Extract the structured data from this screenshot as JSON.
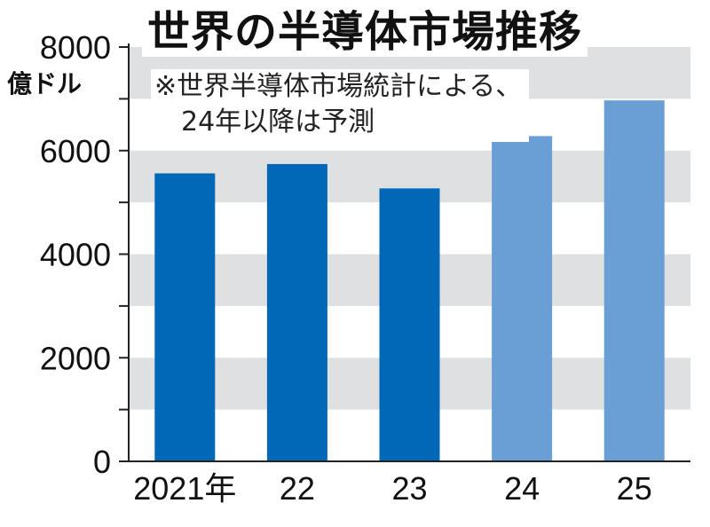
{
  "title": "世界の半導体市場推移",
  "unit_label": "億ドル",
  "note": [
    "※世界半導体市場統計による、",
    "24年以降は予測"
  ],
  "colors": {
    "actual": "#0068b7",
    "forecast": "#6a9fd6",
    "band": "#dfe0e2",
    "axis": "#222222"
  },
  "chart_data": {
    "type": "bar",
    "title": "世界の半導体市場推移",
    "ylabel": "億ドル",
    "xlabel": "",
    "categories": [
      "2021年",
      "22",
      "23",
      "24",
      "25"
    ],
    "values": [
      5560,
      5740,
      5270,
      6280,
      6970
    ],
    "forecast": [
      false,
      false,
      false,
      true,
      true
    ],
    "ylim": [
      0,
      8000
    ],
    "yticks": [
      0,
      2000,
      4000,
      6000,
      8000
    ],
    "grid": "alternating horizontal bands",
    "legend": "none"
  }
}
